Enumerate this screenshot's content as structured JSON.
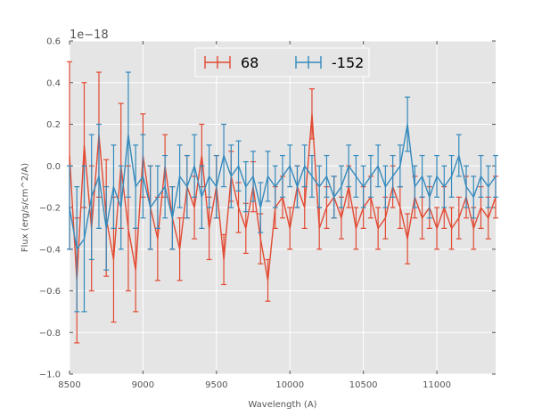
{
  "chart_data": {
    "type": "line",
    "xlabel": "Wavelength (A)",
    "ylabel": "Flux (erg/s/cm^2/A)",
    "offset_text": "1e−18",
    "xlim": [
      8500,
      11400
    ],
    "ylim": [
      -1.0,
      0.6
    ],
    "x_ticks": [
      8500,
      9000,
      9500,
      10000,
      10500,
      11000
    ],
    "x_tick_labels": [
      "8500",
      "9000",
      "9500",
      "10000",
      "10500",
      "11000"
    ],
    "y_ticks": [
      -1.0,
      -0.8,
      -0.6,
      -0.4,
      -0.2,
      0.0,
      0.2,
      0.4,
      0.6
    ],
    "y_tick_labels": [
      "−1.0",
      "−0.8",
      "−0.6",
      "−0.4",
      "−0.2",
      "0.0",
      "0.2",
      "0.4",
      "0.6"
    ],
    "grid": true,
    "legend_position": "top-center",
    "series": [
      {
        "name": "68",
        "color": "#E24A33",
        "x": [
          8500,
          8550,
          8600,
          8650,
          8700,
          8750,
          8800,
          8850,
          8900,
          8950,
          9000,
          9050,
          9100,
          9150,
          9200,
          9250,
          9300,
          9350,
          9400,
          9450,
          9500,
          9550,
          9600,
          9650,
          9700,
          9750,
          9800,
          9850,
          9900,
          9950,
          10000,
          10050,
          10100,
          10150,
          10200,
          10250,
          10300,
          10350,
          10400,
          10450,
          10500,
          10550,
          10600,
          10650,
          10700,
          10750,
          10800,
          10850,
          10900,
          10950,
          11000,
          11050,
          11100,
          11150,
          11200,
          11250,
          11300,
          11350,
          11400
        ],
        "y": [
          0.05,
          -0.55,
          0.1,
          -0.3,
          0.15,
          -0.25,
          -0.45,
          0.0,
          -0.3,
          -0.5,
          0.05,
          -0.2,
          -0.35,
          0.0,
          -0.25,
          -0.4,
          -0.1,
          -0.2,
          0.05,
          -0.3,
          -0.1,
          -0.45,
          -0.05,
          -0.2,
          -0.3,
          -0.1,
          -0.35,
          -0.55,
          -0.2,
          -0.15,
          -0.3,
          -0.1,
          -0.2,
          0.25,
          -0.3,
          -0.2,
          -0.15,
          -0.25,
          -0.1,
          -0.3,
          -0.2,
          -0.15,
          -0.3,
          -0.25,
          -0.1,
          -0.2,
          -0.35,
          -0.15,
          -0.25,
          -0.2,
          -0.3,
          -0.2,
          -0.3,
          -0.25,
          -0.15,
          -0.3,
          -0.2,
          -0.25,
          -0.15
        ],
        "err": [
          0.45,
          0.3,
          0.3,
          0.3,
          0.3,
          0.28,
          0.3,
          0.3,
          0.3,
          0.2,
          0.2,
          0.2,
          0.2,
          0.15,
          0.15,
          0.15,
          0.15,
          0.15,
          0.15,
          0.15,
          0.15,
          0.12,
          0.12,
          0.12,
          0.12,
          0.12,
          0.12,
          0.1,
          0.1,
          0.1,
          0.1,
          0.1,
          0.1,
          0.12,
          0.1,
          0.1,
          0.1,
          0.1,
          0.1,
          0.1,
          0.1,
          0.1,
          0.1,
          0.1,
          0.1,
          0.1,
          0.12,
          0.1,
          0.1,
          0.1,
          0.1,
          0.1,
          0.1,
          0.1,
          0.1,
          0.1,
          0.1,
          0.1,
          0.1
        ]
      },
      {
        "name": "-152",
        "color": "#348ABD",
        "x": [
          8500,
          8550,
          8600,
          8650,
          8700,
          8750,
          8800,
          8850,
          8900,
          8950,
          9000,
          9050,
          9100,
          9150,
          9200,
          9250,
          9300,
          9350,
          9400,
          9450,
          9500,
          9550,
          9600,
          9650,
          9700,
          9750,
          9800,
          9850,
          9900,
          9950,
          10000,
          10050,
          10100,
          10150,
          10200,
          10250,
          10300,
          10350,
          10400,
          10450,
          10500,
          10550,
          10600,
          10650,
          10700,
          10750,
          10800,
          10850,
          10900,
          10950,
          11000,
          11050,
          11100,
          11150,
          11200,
          11250,
          11300,
          11350,
          11400
        ],
        "y": [
          -0.2,
          -0.4,
          -0.35,
          -0.15,
          -0.05,
          -0.3,
          -0.1,
          -0.2,
          0.15,
          -0.1,
          -0.05,
          -0.2,
          -0.15,
          -0.1,
          -0.25,
          -0.05,
          -0.1,
          0.0,
          -0.15,
          -0.05,
          -0.1,
          0.05,
          -0.05,
          0.0,
          -0.1,
          -0.05,
          -0.2,
          -0.05,
          -0.1,
          -0.05,
          0.0,
          -0.1,
          0.0,
          -0.05,
          -0.1,
          -0.05,
          -0.15,
          -0.1,
          0.0,
          -0.05,
          -0.1,
          -0.05,
          0.0,
          -0.1,
          -0.05,
          0.0,
          0.2,
          -0.1,
          -0.05,
          -0.15,
          -0.05,
          -0.1,
          -0.05,
          0.05,
          -0.1,
          -0.15,
          -0.05,
          -0.1,
          -0.05
        ],
        "err": [
          0.2,
          0.3,
          0.35,
          0.3,
          0.25,
          0.2,
          0.2,
          0.2,
          0.3,
          0.2,
          0.2,
          0.2,
          0.15,
          0.15,
          0.15,
          0.15,
          0.15,
          0.15,
          0.15,
          0.15,
          0.15,
          0.15,
          0.15,
          0.12,
          0.12,
          0.12,
          0.12,
          0.12,
          0.1,
          0.1,
          0.1,
          0.1,
          0.1,
          0.1,
          0.1,
          0.1,
          0.1,
          0.1,
          0.1,
          0.1,
          0.1,
          0.1,
          0.1,
          0.1,
          0.1,
          0.1,
          0.13,
          0.1,
          0.1,
          0.1,
          0.1,
          0.1,
          0.1,
          0.1,
          0.1,
          0.1,
          0.1,
          0.1,
          0.1
        ]
      }
    ]
  }
}
